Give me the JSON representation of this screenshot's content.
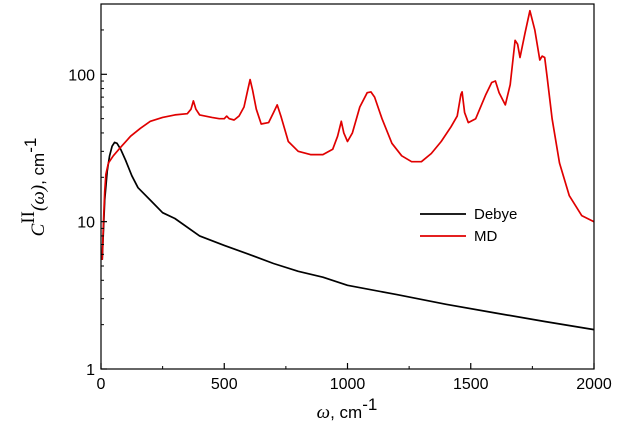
{
  "chart_data": {
    "type": "line",
    "title": "",
    "xlabel": {
      "symbol": "ω",
      "unit": ", cm",
      "unit_exp": "-1"
    },
    "ylabel": {
      "symbol": "C",
      "superscript": "II",
      "arg": "(ω)",
      "unit": ", cm",
      "unit_exp": "-1"
    },
    "xlim": [
      0,
      2000
    ],
    "ylim": [
      1,
      300
    ],
    "yscale": "log",
    "xticks": [
      0,
      500,
      1000,
      1500,
      2000
    ],
    "xtick_labels": [
      "0",
      "500",
      "1000",
      "1500",
      "2000"
    ],
    "yticks": [
      1,
      10,
      100
    ],
    "ytick_labels": [
      "1",
      "10",
      "100"
    ],
    "grid": false,
    "legend_position": "center-right",
    "series": [
      {
        "name": "Debye",
        "color": "#000000",
        "x": [
          5,
          15,
          25,
          35,
          45,
          55,
          65,
          80,
          100,
          125,
          150,
          200,
          250,
          300,
          400,
          500,
          600,
          700,
          800,
          900,
          1000,
          1200,
          1400,
          1600,
          1800,
          2000
        ],
        "y": [
          5.5,
          14,
          22,
          28,
          32.5,
          34.5,
          34,
          31,
          26,
          20.5,
          17,
          14,
          11.5,
          10.5,
          8,
          6.9,
          6,
          5.2,
          4.6,
          4.2,
          3.7,
          3.2,
          2.75,
          2.4,
          2.1,
          1.85
        ]
      },
      {
        "name": "MD",
        "color": "#e00000",
        "x": [
          5,
          10,
          15,
          20,
          30,
          50,
          80,
          120,
          160,
          200,
          250,
          300,
          350,
          365,
          375,
          385,
          400,
          450,
          480,
          500,
          510,
          520,
          540,
          560,
          580,
          595,
          605,
          615,
          630,
          650,
          680,
          700,
          715,
          730,
          760,
          800,
          850,
          900,
          940,
          960,
          975,
          985,
          1000,
          1020,
          1050,
          1080,
          1095,
          1110,
          1140,
          1180,
          1220,
          1260,
          1300,
          1340,
          1380,
          1420,
          1445,
          1460,
          1465,
          1475,
          1490,
          1520,
          1560,
          1585,
          1600,
          1615,
          1640,
          1660,
          1680,
          1690,
          1700,
          1720,
          1740,
          1760,
          1780,
          1790,
          1800,
          1810,
          1830,
          1860,
          1900,
          1950,
          2000
        ],
        "y": [
          5.5,
          10,
          16,
          21,
          25,
          28,
          32,
          38,
          43,
          48,
          51,
          53,
          54,
          58,
          66,
          58,
          53,
          51,
          50,
          50,
          52,
          50,
          49,
          52,
          60,
          78,
          92,
          78,
          58,
          46,
          47,
          55,
          62,
          52,
          35,
          30,
          28.5,
          28.5,
          31,
          38,
          48,
          40,
          35,
          40,
          60,
          75,
          76,
          70,
          50,
          34,
          28,
          25.5,
          25.5,
          29,
          35,
          44,
          52,
          73,
          76,
          55,
          47,
          50,
          72,
          88,
          90,
          75,
          62,
          85,
          170,
          160,
          130,
          190,
          270,
          200,
          125,
          133,
          130,
          95,
          50,
          25,
          15,
          11,
          10
        ]
      }
    ]
  }
}
